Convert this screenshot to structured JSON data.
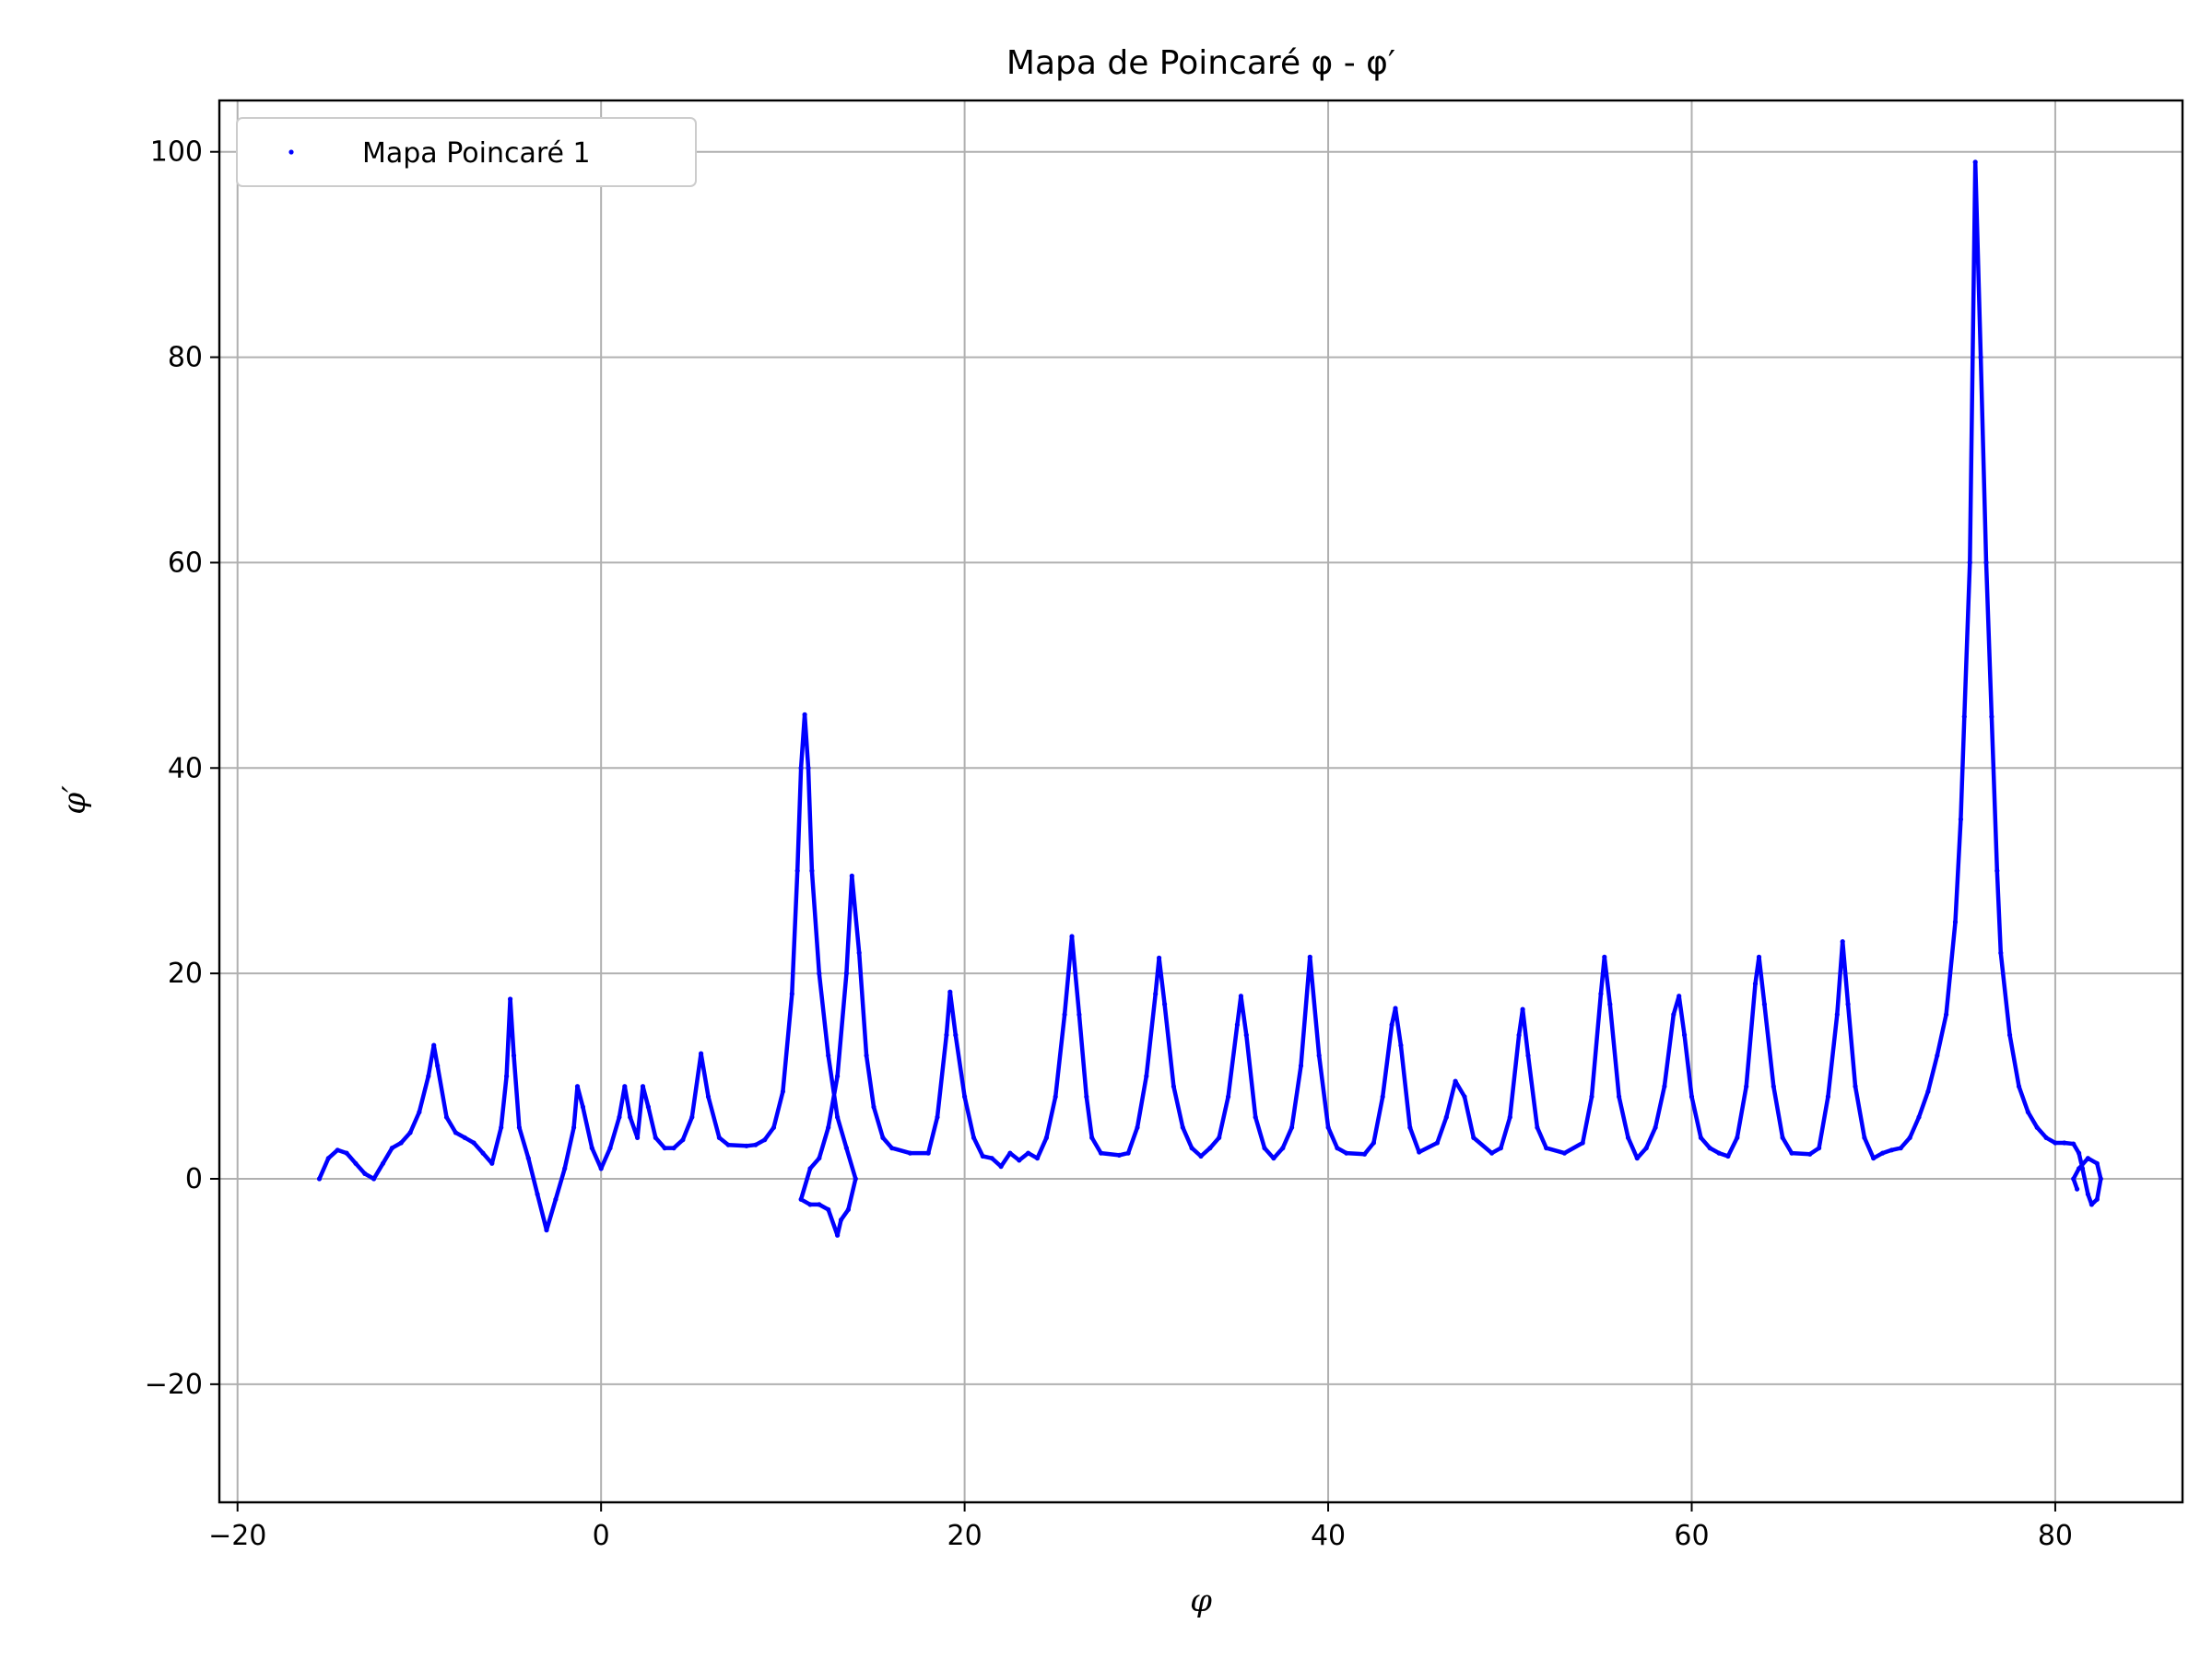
{
  "chart_data": {
    "type": "scatter",
    "title": "Mapa de Poincaré φ - φ′",
    "xlabel": "φ",
    "ylabel": "φ′",
    "xlim": [
      -21,
      87
    ],
    "ylim": [
      -31.5,
      105
    ],
    "xticks": [
      -20,
      0,
      20,
      40,
      60,
      80
    ],
    "xtick_labels": [
      "−20",
      "0",
      "20",
      "40",
      "60",
      "80"
    ],
    "yticks": [
      -20,
      0,
      20,
      40,
      60,
      80,
      100
    ],
    "ytick_labels": [
      "−20",
      "0",
      "20",
      "40",
      "60",
      "80",
      "100"
    ],
    "grid": true,
    "legend_position": "top-left",
    "series": [
      {
        "name": "Mapa Poincaré 1",
        "color": "#0000ff",
        "marker": "point",
        "points": [
          [
            -15.5,
            0
          ],
          [
            -15,
            2
          ],
          [
            -14.5,
            2.8
          ],
          [
            -14,
            2.5
          ],
          [
            -13.5,
            1.5
          ],
          [
            -13,
            0.5
          ],
          [
            -12.5,
            0
          ],
          [
            -12,
            1.5
          ],
          [
            -11.5,
            3
          ],
          [
            -11,
            3.5
          ],
          [
            -10.5,
            4.5
          ],
          [
            -10,
            6.5
          ],
          [
            -9.5,
            10
          ],
          [
            -9.2,
            13
          ],
          [
            -9,
            11
          ],
          [
            -8.5,
            6
          ],
          [
            -8,
            4.5
          ],
          [
            -7.5,
            4
          ],
          [
            -7,
            3.5
          ],
          [
            -6.5,
            2.5
          ],
          [
            -6,
            1.5
          ],
          [
            -5.5,
            5
          ],
          [
            -5.2,
            10
          ],
          [
            -5,
            17.5
          ],
          [
            -4.8,
            12
          ],
          [
            -4.5,
            5
          ],
          [
            -4,
            2
          ],
          [
            -3.5,
            -1.5
          ],
          [
            -3,
            -5
          ],
          [
            -2.5,
            -2
          ],
          [
            -2,
            1
          ],
          [
            -1.5,
            5
          ],
          [
            -1.3,
            9
          ],
          [
            -1,
            7
          ],
          [
            -0.5,
            3
          ],
          [
            0,
            1
          ],
          [
            0.5,
            3
          ],
          [
            1,
            6
          ],
          [
            1.3,
            9
          ],
          [
            1.6,
            6
          ],
          [
            2,
            4
          ],
          [
            2.3,
            9
          ],
          [
            2.6,
            7
          ],
          [
            3,
            4
          ],
          [
            3.5,
            3
          ],
          [
            4,
            3
          ],
          [
            4.5,
            3.8
          ],
          [
            5,
            6
          ],
          [
            5.5,
            12.2
          ],
          [
            5.9,
            8
          ],
          [
            6.5,
            4
          ],
          [
            7,
            3.3
          ],
          [
            8,
            3.2
          ],
          [
            8.5,
            3.3
          ],
          [
            9,
            3.8
          ],
          [
            9.5,
            5
          ],
          [
            10,
            8.5
          ],
          [
            10.5,
            18
          ],
          [
            10.8,
            30
          ],
          [
            11,
            40
          ],
          [
            11.2,
            45.2
          ],
          [
            11.4,
            40
          ],
          [
            11.6,
            30
          ],
          [
            12,
            20
          ],
          [
            12.5,
            12
          ],
          [
            13,
            6
          ],
          [
            13.5,
            3
          ],
          [
            14,
            0
          ],
          [
            13.6,
            -3
          ],
          [
            13.2,
            -4
          ],
          [
            13,
            -5.5
          ],
          [
            12.5,
            -3
          ],
          [
            12,
            -2.5
          ],
          [
            11.5,
            -2.5
          ],
          [
            11,
            -2
          ],
          [
            11.5,
            1
          ],
          [
            12,
            2
          ],
          [
            12.5,
            5
          ],
          [
            13,
            10
          ],
          [
            13.5,
            20
          ],
          [
            13.8,
            29.5
          ],
          [
            14.2,
            22
          ],
          [
            14.6,
            12
          ],
          [
            15,
            7
          ],
          [
            15.5,
            4
          ],
          [
            16,
            3
          ],
          [
            17,
            2.5
          ],
          [
            18,
            2.5
          ],
          [
            18.5,
            6
          ],
          [
            19,
            14
          ],
          [
            19.2,
            18.2
          ],
          [
            19.5,
            14
          ],
          [
            20,
            8
          ],
          [
            20.5,
            4
          ],
          [
            21,
            2.2
          ],
          [
            21.5,
            2
          ],
          [
            22,
            1.2
          ],
          [
            22.5,
            2.5
          ],
          [
            23,
            1.8
          ],
          [
            23.5,
            2.5
          ],
          [
            24,
            2
          ],
          [
            24.5,
            4
          ],
          [
            25,
            8
          ],
          [
            25.5,
            16
          ],
          [
            25.9,
            23.6
          ],
          [
            26.3,
            16
          ],
          [
            26.7,
            8
          ],
          [
            27,
            4
          ],
          [
            27.5,
            2.5
          ],
          [
            28.5,
            2.3
          ],
          [
            29,
            2.5
          ],
          [
            29.5,
            5
          ],
          [
            30,
            10
          ],
          [
            30.5,
            18
          ],
          [
            30.7,
            21.5
          ],
          [
            31,
            17
          ],
          [
            31.5,
            9
          ],
          [
            32,
            5
          ],
          [
            32.5,
            3
          ],
          [
            33,
            2.2
          ],
          [
            33.5,
            3
          ],
          [
            34,
            4
          ],
          [
            34.5,
            8
          ],
          [
            35,
            15
          ],
          [
            35.2,
            17.8
          ],
          [
            35.5,
            14
          ],
          [
            36,
            6
          ],
          [
            36.5,
            3
          ],
          [
            37,
            2
          ],
          [
            37.5,
            3
          ],
          [
            38,
            5
          ],
          [
            38.5,
            11
          ],
          [
            39,
            21.6
          ],
          [
            39.5,
            12
          ],
          [
            40,
            5
          ],
          [
            40.5,
            3
          ],
          [
            41,
            2.5
          ],
          [
            42,
            2.4
          ],
          [
            42.5,
            3.5
          ],
          [
            43,
            8
          ],
          [
            43.5,
            15
          ],
          [
            43.7,
            16.6
          ],
          [
            44,
            13
          ],
          [
            44.5,
            5
          ],
          [
            45,
            2.6
          ],
          [
            46,
            3.5
          ],
          [
            46.5,
            6
          ],
          [
            47,
            9.5
          ],
          [
            47.5,
            8
          ],
          [
            48,
            4
          ],
          [
            49,
            2.5
          ],
          [
            49.5,
            3
          ],
          [
            50,
            6
          ],
          [
            50.5,
            14
          ],
          [
            50.7,
            16.5
          ],
          [
            51,
            12
          ],
          [
            51.5,
            5
          ],
          [
            52,
            3
          ],
          [
            53,
            2.5
          ],
          [
            54,
            3.5
          ],
          [
            54.5,
            8
          ],
          [
            55,
            18
          ],
          [
            55.2,
            21.6
          ],
          [
            55.5,
            17
          ],
          [
            56,
            8
          ],
          [
            56.5,
            4
          ],
          [
            57,
            2
          ],
          [
            57.5,
            3
          ],
          [
            58,
            5
          ],
          [
            58.5,
            9
          ],
          [
            59,
            16
          ],
          [
            59.3,
            17.8
          ],
          [
            59.6,
            14
          ],
          [
            60,
            8
          ],
          [
            60.5,
            4
          ],
          [
            61,
            3
          ],
          [
            61.5,
            2.5
          ],
          [
            62,
            2.2
          ],
          [
            62.5,
            4
          ],
          [
            63,
            9
          ],
          [
            63.5,
            19
          ],
          [
            63.7,
            21.6
          ],
          [
            64,
            17
          ],
          [
            64.5,
            9
          ],
          [
            65,
            4
          ],
          [
            65.5,
            2.5
          ],
          [
            66.5,
            2.4
          ],
          [
            67,
            3
          ],
          [
            67.5,
            8
          ],
          [
            68,
            16
          ],
          [
            68.3,
            23.1
          ],
          [
            68.6,
            17
          ],
          [
            69,
            9
          ],
          [
            69.5,
            4
          ],
          [
            70,
            2
          ],
          [
            70.5,
            2.5
          ],
          [
            71,
            2.8
          ],
          [
            71.5,
            3
          ],
          [
            72,
            4
          ],
          [
            72.5,
            6
          ],
          [
            73,
            8.5
          ],
          [
            73.5,
            12
          ],
          [
            74,
            16
          ],
          [
            74.5,
            25
          ],
          [
            74.8,
            35
          ],
          [
            75,
            45
          ],
          [
            75.3,
            60
          ],
          [
            75.6,
            99
          ],
          [
            75.9,
            80
          ],
          [
            76.2,
            60
          ],
          [
            76.5,
            45
          ],
          [
            76.8,
            30
          ],
          [
            77,
            22
          ],
          [
            77.5,
            14
          ],
          [
            78,
            9
          ],
          [
            78.5,
            6.5
          ],
          [
            79,
            5
          ],
          [
            79.5,
            4
          ],
          [
            80,
            3.5
          ],
          [
            80.5,
            3.5
          ],
          [
            81,
            3.4
          ],
          [
            81.3,
            2.5
          ],
          [
            81.5,
            1
          ],
          [
            81.8,
            -1.5
          ],
          [
            82,
            -2.5
          ],
          [
            82.3,
            -2
          ],
          [
            82.5,
            0
          ],
          [
            82.3,
            1.5
          ],
          [
            81.8,
            2
          ],
          [
            81.3,
            1
          ],
          [
            81,
            0
          ],
          [
            81.2,
            -1
          ]
        ]
      }
    ]
  }
}
